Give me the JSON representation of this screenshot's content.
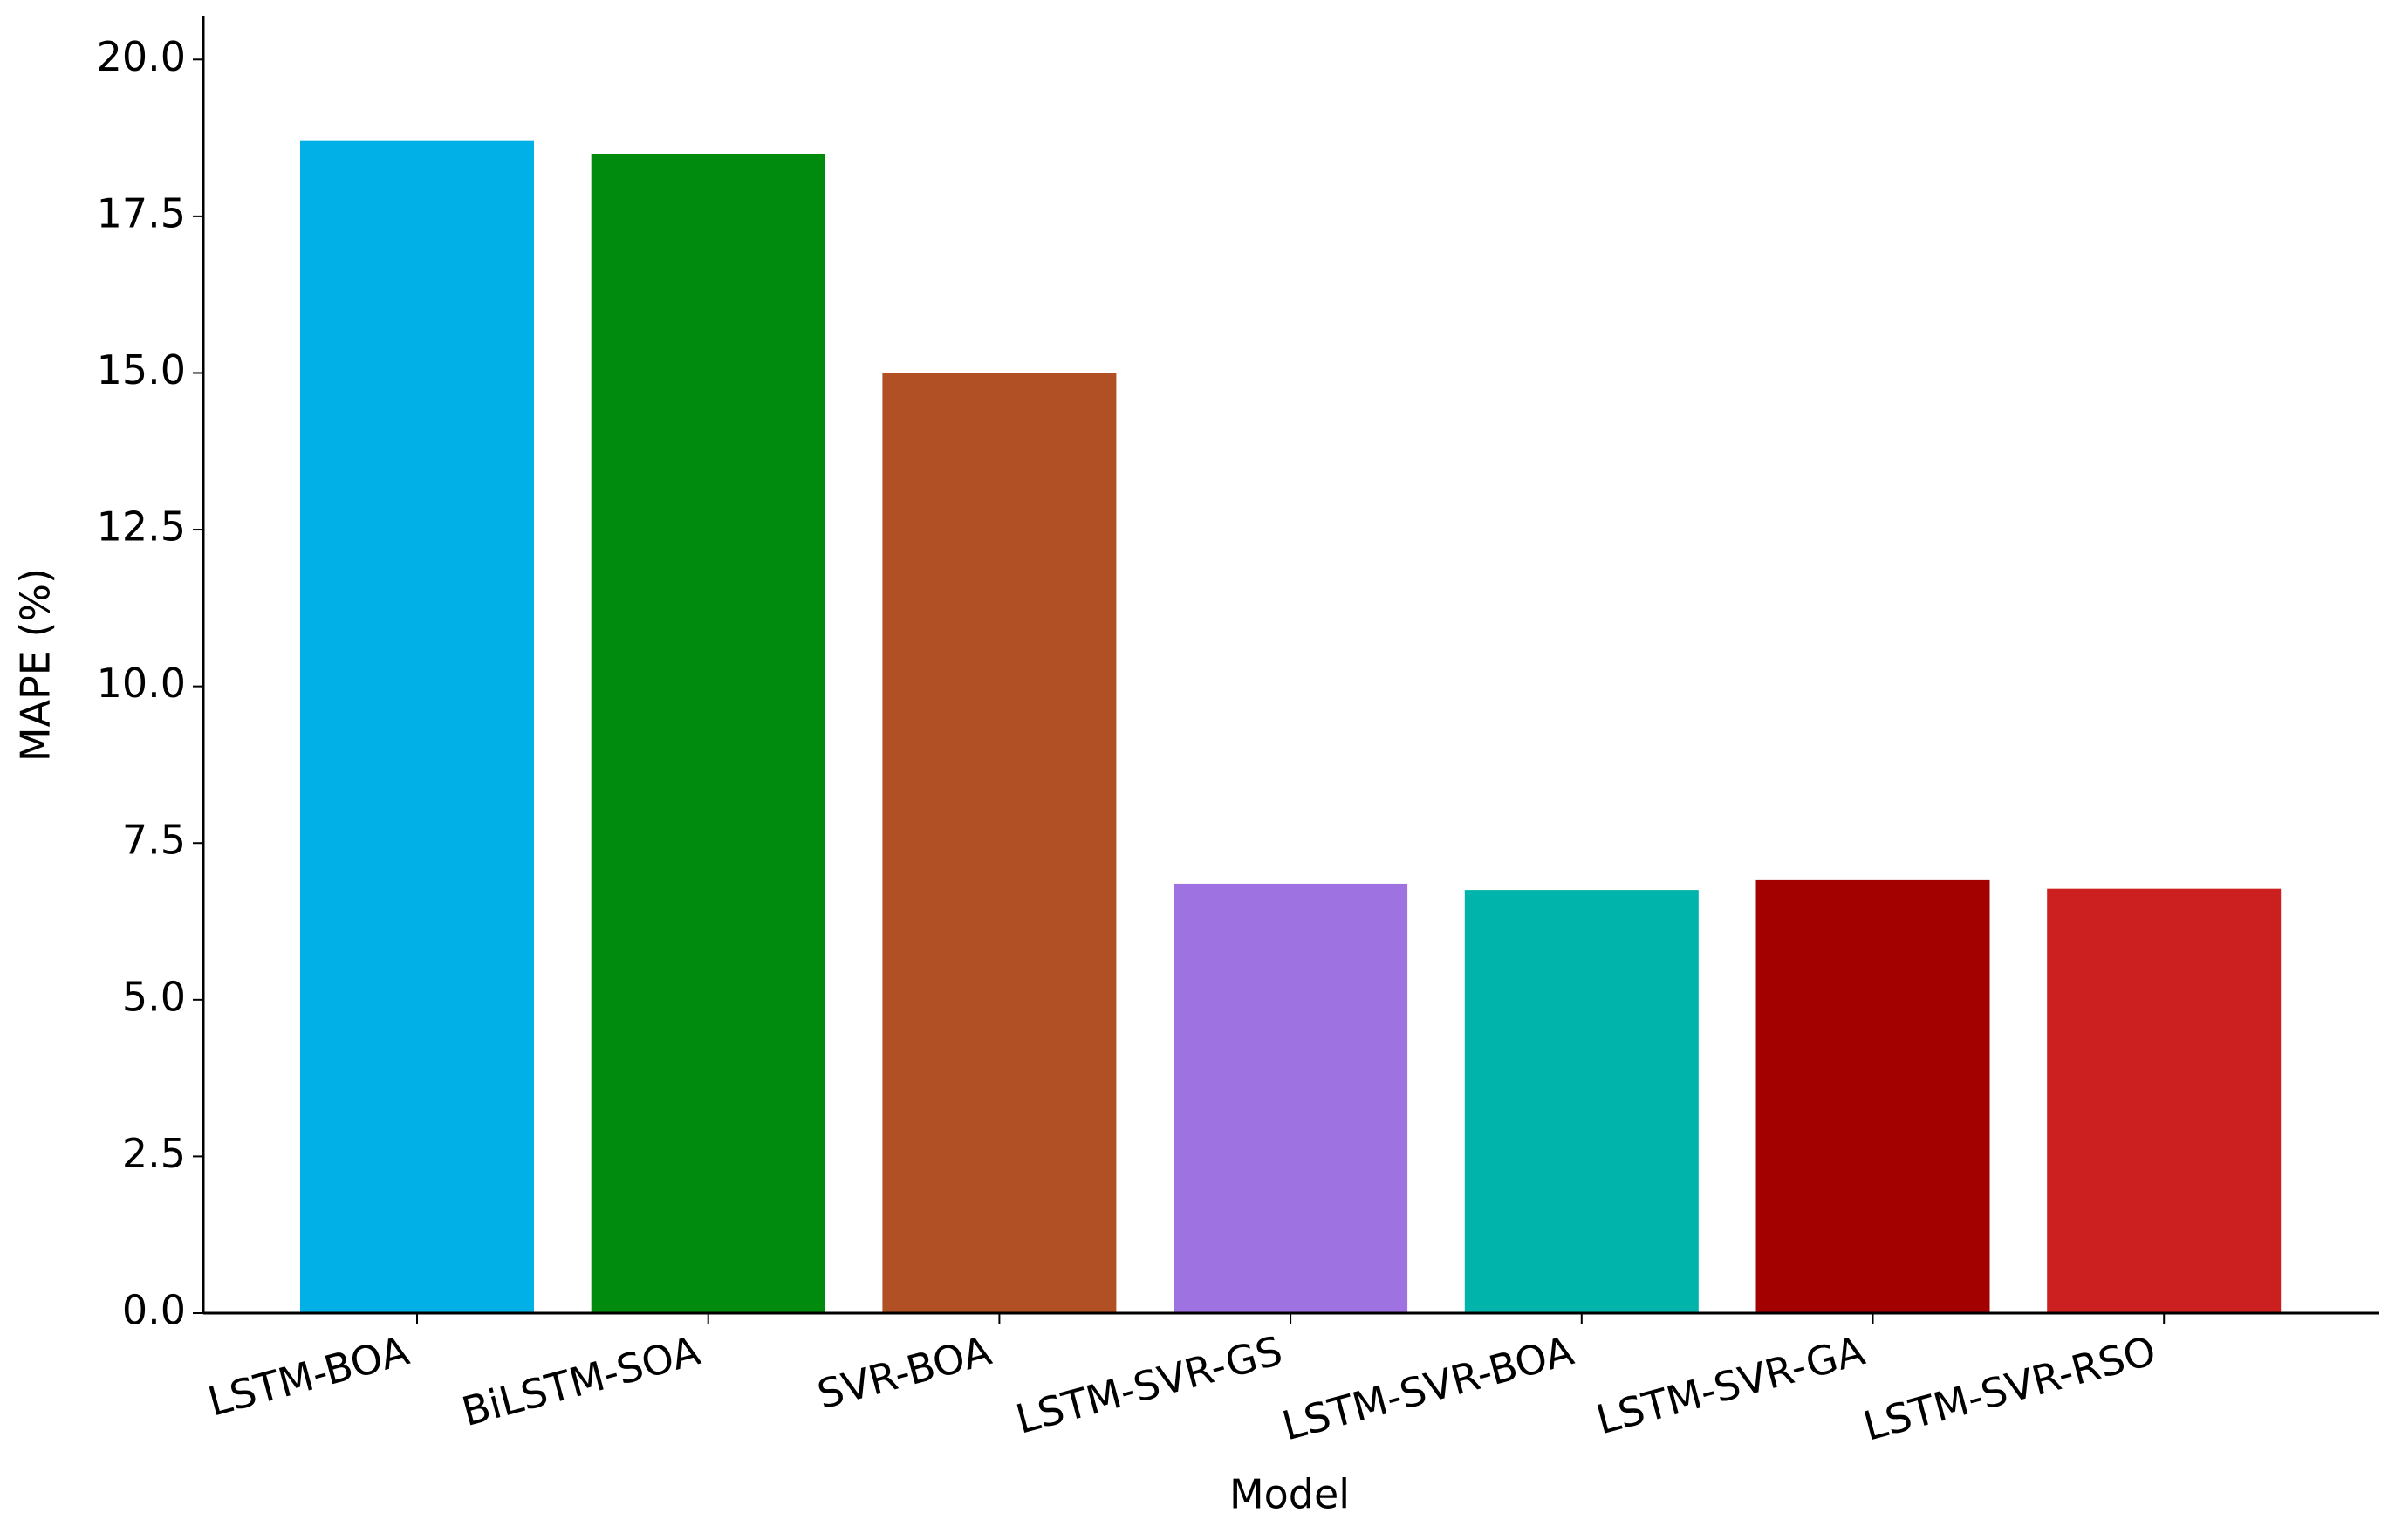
{
  "chart_data": {
    "type": "bar",
    "x_label": "Model",
    "y_label": "MAPE (%)",
    "categories": [
      "LSTM-BOA",
      "BiLSTM-SOA",
      "SVR-BOA",
      "LSTM-SVR-GS",
      "LSTM-SVR-BOA",
      "LSTM-SVR-GA",
      "LSTM-SVR-RSO"
    ],
    "values": [
      18.7,
      18.5,
      15.0,
      6.85,
      6.75,
      6.92,
      6.77
    ],
    "colors": [
      "#00b0e6",
      "#008a0e",
      "#b25025",
      "#9e72e0",
      "#00b3ab",
      "#a30000",
      "#cc1f1f"
    ],
    "ylim": [
      0,
      20.7
    ],
    "yticks": [
      {
        "value": 0,
        "label": "0.0"
      },
      2.5,
      {
        "value": 5,
        "label": "5.0"
      },
      7.5,
      {
        "value": 10,
        "label": "10.0"
      },
      12.5,
      {
        "value": 15,
        "label": "15.0"
      },
      17.5,
      {
        "value": 20,
        "label": "20.0"
      }
    ],
    "grid": false
  }
}
